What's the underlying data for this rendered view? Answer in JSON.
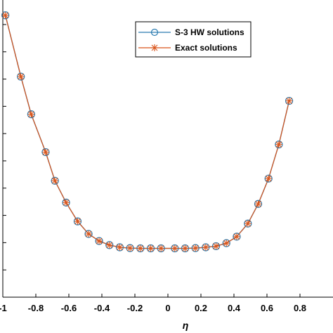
{
  "chart_data": {
    "type": "line",
    "xlabel": "η",
    "xlim": [
      -1,
      1
    ],
    "ylim": [
      0,
      1.09
    ],
    "x_ticks": [
      -1,
      -0.8,
      -0.6,
      -0.4,
      -0.2,
      0,
      0.2,
      0.4,
      0.6,
      0.8
    ],
    "x_tick_labels": [
      "-1",
      "-0.8",
      "-0.6",
      "-0.4",
      "-0.2",
      "0",
      "0.2",
      "0.4",
      "0.6",
      "0.8"
    ],
    "y_ticks": [
      0.1,
      0.2,
      0.3,
      0.4,
      0.5,
      0.6,
      0.7,
      0.8,
      0.9,
      1.0
    ],
    "grid": false,
    "legend_position": "top-right",
    "legend": [
      "S-3 HW solutions",
      "Exact solutions"
    ],
    "x": [
      -0.9844,
      -0.8906,
      -0.8281,
      -0.7406,
      -0.6844,
      -0.6167,
      -0.5469,
      -0.4805,
      -0.4167,
      -0.3542,
      -0.2917,
      -0.2292,
      -0.1667,
      -0.1042,
      -0.0417,
      0.0417,
      0.1042,
      0.1667,
      0.2292,
      0.2917,
      0.3542,
      0.4167,
      0.4844,
      0.5469,
      0.6094,
      0.6719,
      0.7344
    ],
    "series": [
      {
        "name": "S-3 HW solutions",
        "color": "#2a7bb0",
        "marker": "circle",
        "values": [
          1.034,
          0.809,
          0.671,
          0.532,
          0.427,
          0.347,
          0.278,
          0.232,
          0.206,
          0.191,
          0.183,
          0.18,
          0.179,
          0.179,
          0.179,
          0.179,
          0.179,
          0.18,
          0.183,
          0.187,
          0.198,
          0.222,
          0.27,
          0.342,
          0.435,
          0.56,
          0.72
        ]
      },
      {
        "name": "Exact solutions",
        "color": "#d9541a",
        "marker": "asterisk",
        "values": [
          1.034,
          0.809,
          0.671,
          0.532,
          0.427,
          0.347,
          0.278,
          0.232,
          0.206,
          0.191,
          0.183,
          0.18,
          0.179,
          0.179,
          0.179,
          0.179,
          0.179,
          0.18,
          0.183,
          0.187,
          0.198,
          0.222,
          0.27,
          0.342,
          0.435,
          0.56,
          0.72
        ]
      }
    ]
  }
}
